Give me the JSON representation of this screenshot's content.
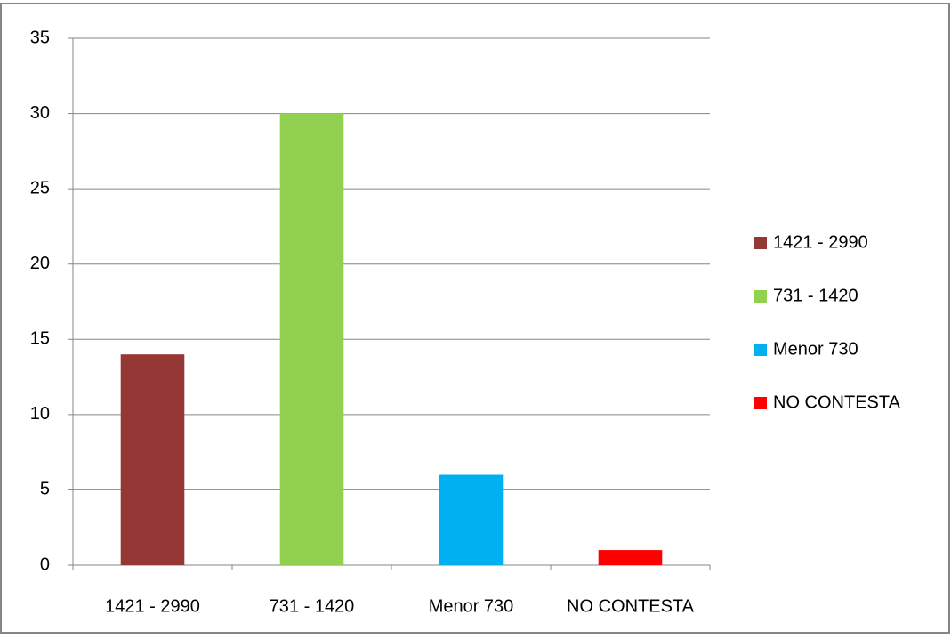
{
  "chart_data": {
    "type": "bar",
    "categories": [
      "1421 - 2990",
      "731 - 1420",
      "Menor 730",
      "NO CONTESTA"
    ],
    "values": [
      14,
      30,
      6,
      1
    ],
    "colors": [
      "#953735",
      "#92d050",
      "#00b0f0",
      "#ff0000"
    ],
    "ylim": [
      0,
      35
    ],
    "yticks": [
      0,
      5,
      10,
      15,
      20,
      25,
      30,
      35
    ],
    "grid": true,
    "legend": "right"
  }
}
